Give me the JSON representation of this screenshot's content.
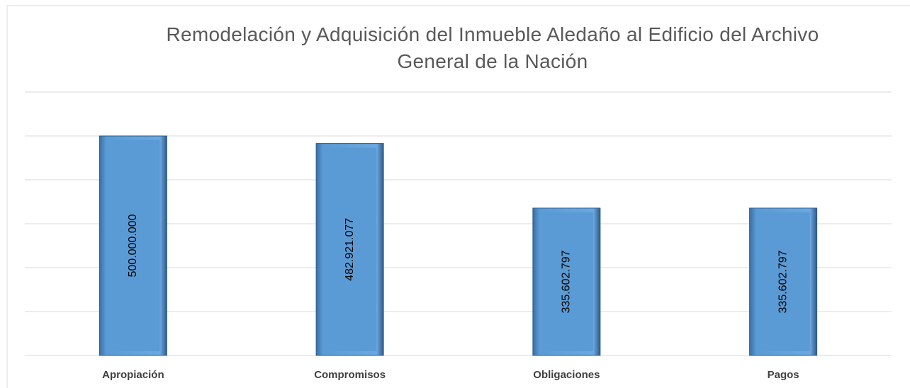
{
  "chart_data": {
    "type": "bar",
    "title": "Remodelación y Adquisición del Inmueble Aledaño al Edificio del Archivo General de la Nación",
    "categories": [
      "Apropiación",
      "Compromisos",
      "Obligaciones",
      "Pagos"
    ],
    "values": [
      500000000,
      482921077,
      335602797,
      335602797
    ],
    "value_labels": [
      "500.000.000",
      "482.921.077",
      "335.602.797",
      "335.602.797"
    ],
    "color": "#5b9bd5",
    "ylim": [
      0,
      600000000
    ],
    "yticks": [
      0,
      100000000,
      200000000,
      300000000,
      400000000,
      500000000,
      600000000
    ],
    "grid": true
  }
}
